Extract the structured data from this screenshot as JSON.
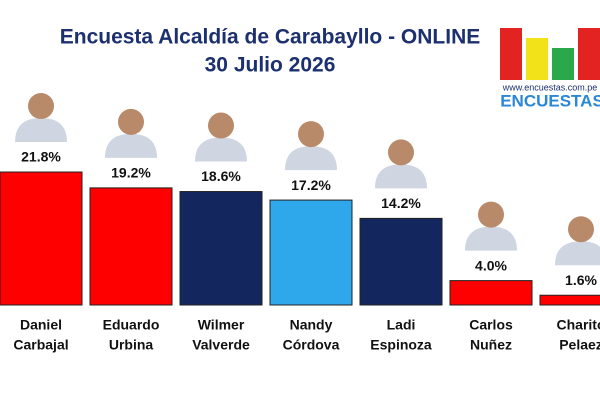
{
  "chart_data": {
    "type": "bar",
    "title": "Encuesta Alcaldía de Carabayllo - ONLINE",
    "subtitle": "30 Julio 2026",
    "categories": [
      [
        "Daniel",
        "Carbajal"
      ],
      [
        "Eduardo",
        "Urbina"
      ],
      [
        "Wilmer",
        "Valverde"
      ],
      [
        "Nandy",
        "Córdova"
      ],
      [
        "Ladi",
        "Espinoza"
      ],
      [
        "Carlos",
        "Nuñez"
      ],
      [
        "Charito",
        "Pelaez"
      ]
    ],
    "values": [
      21.8,
      19.2,
      18.6,
      17.2,
      14.2,
      4,
      1.6
    ],
    "value_labels": [
      "21.8%",
      "19.2%",
      "18.6%",
      "17.2%",
      "14.2%",
      "4.0%",
      "1.6%"
    ],
    "colors": [
      "#ff0000",
      "#ff0000",
      "#14265e",
      "#2ea8ea",
      "#14265e",
      "#ff0000",
      "#ff0000"
    ],
    "logo": {
      "url": "www.encuestas.com.pe",
      "name": "ENCUESTAS"
    }
  }
}
